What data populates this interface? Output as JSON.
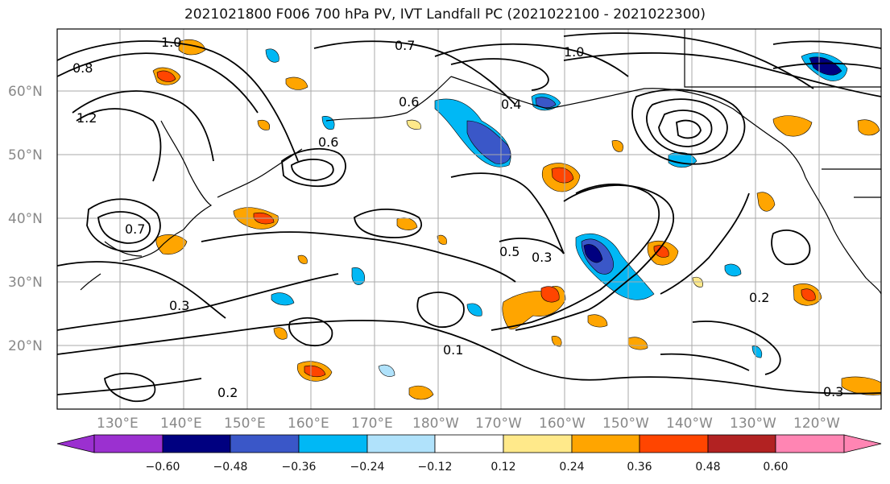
{
  "title": "2021021800 F006 700 hPa PV, IVT Landfall PC (2021022100 - 2021022300)",
  "axes": {
    "lat_labels": [
      "60°N",
      "50°N",
      "40°N",
      "30°N",
      "20°N"
    ],
    "lon_labels": [
      "130°E",
      "140°E",
      "150°E",
      "160°E",
      "170°E",
      "180°W",
      "170°W",
      "160°W",
      "150°W",
      "140°W",
      "130°W",
      "120°W"
    ]
  },
  "contour_labels": [
    "0.8",
    "1.2",
    "1.0",
    "0.7",
    "0.6",
    "0.4",
    "0.5",
    "0.3",
    "0.2",
    "0.1"
  ],
  "colorbar": {
    "labels": [
      "−0.60",
      "−0.48",
      "−0.36",
      "−0.24",
      "−0.12",
      "0.12",
      "0.24",
      "0.36",
      "0.48",
      "0.60"
    ],
    "colors": [
      "#9b30d0",
      "#000080",
      "#3a57c8",
      "#00b8f5",
      "#b0e2fb",
      "#ffffff",
      "#ffe98a",
      "#ffa500",
      "#ff4500",
      "#b22222",
      "#ff85b3"
    ]
  }
}
